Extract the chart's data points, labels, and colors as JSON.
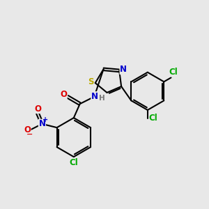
{
  "bg_color": "#e8e8e8",
  "bond_color": "#000000",
  "bond_width": 1.5,
  "atom_colors": {
    "C": "#000000",
    "N": "#0000cc",
    "O": "#dd0000",
    "S": "#bbaa00",
    "Cl": "#00aa00",
    "H": "#777777"
  },
  "font_size": 8.5
}
